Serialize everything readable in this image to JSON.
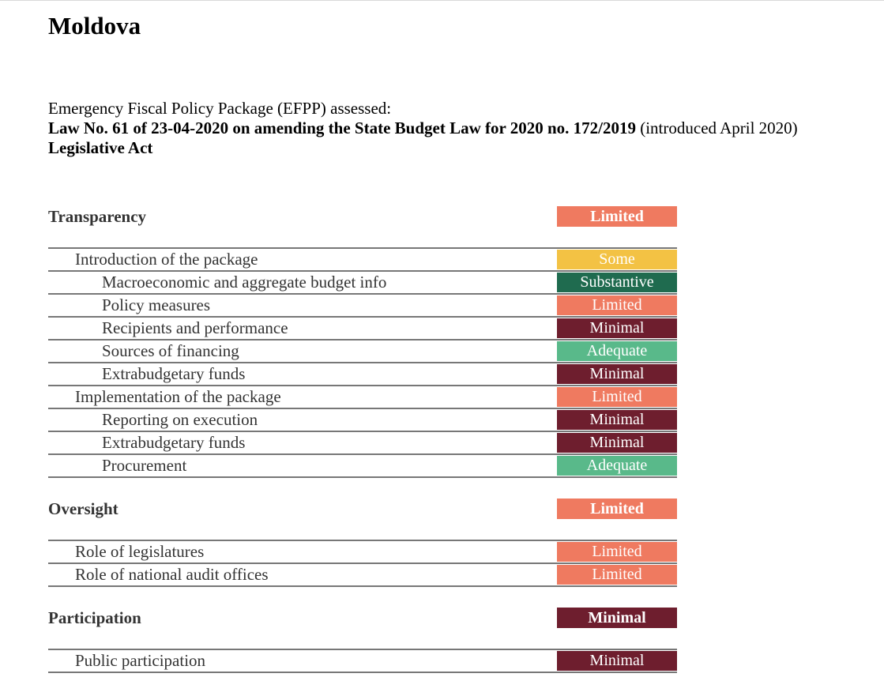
{
  "document": {
    "title": "Moldova",
    "assessed_label": "Emergency Fiscal Policy Package (EFPP) assessed:",
    "law_title": "Law No. 61 of 23-04-2020 on amending the State Budget Law for 2020 no. 172/2019",
    "law_introduced": " (introduced April 2020)",
    "act_type": "Legislative Act"
  },
  "colors": {
    "Limited": "#ef7a60",
    "Some": "#f3c244",
    "Substantive": "#1f6b4f",
    "Minimal": "#6e1e2e",
    "Adequate": "#59b98a"
  },
  "sections": [
    {
      "title": "Transparency",
      "rating": "Limited",
      "rows": [
        {
          "label": "Introduction of the package",
          "level": 1,
          "rating": "Some"
        },
        {
          "label": "Macroeconomic and aggregate budget info",
          "level": 2,
          "rating": "Substantive"
        },
        {
          "label": "Policy measures",
          "level": 2,
          "rating": "Limited"
        },
        {
          "label": "Recipients and performance",
          "level": 2,
          "rating": "Minimal"
        },
        {
          "label": "Sources of financing",
          "level": 2,
          "rating": "Adequate"
        },
        {
          "label": "Extrabudgetary funds",
          "level": 2,
          "rating": "Minimal"
        },
        {
          "label": "Implementation of the package",
          "level": 1,
          "rating": "Limited"
        },
        {
          "label": "Reporting on execution",
          "level": 2,
          "rating": "Minimal"
        },
        {
          "label": "Extrabudgetary funds",
          "level": 2,
          "rating": "Minimal"
        },
        {
          "label": "Procurement",
          "level": 2,
          "rating": "Adequate"
        }
      ]
    },
    {
      "title": "Oversight",
      "rating": "Limited",
      "rows": [
        {
          "label": "Role of legislatures",
          "level": 1,
          "rating": "Limited"
        },
        {
          "label": "Role of national audit offices",
          "level": 1,
          "rating": "Limited"
        }
      ]
    },
    {
      "title": "Participation",
      "rating": "Minimal",
      "rows": [
        {
          "label": "Public participation",
          "level": 1,
          "rating": "Minimal"
        }
      ]
    }
  ]
}
